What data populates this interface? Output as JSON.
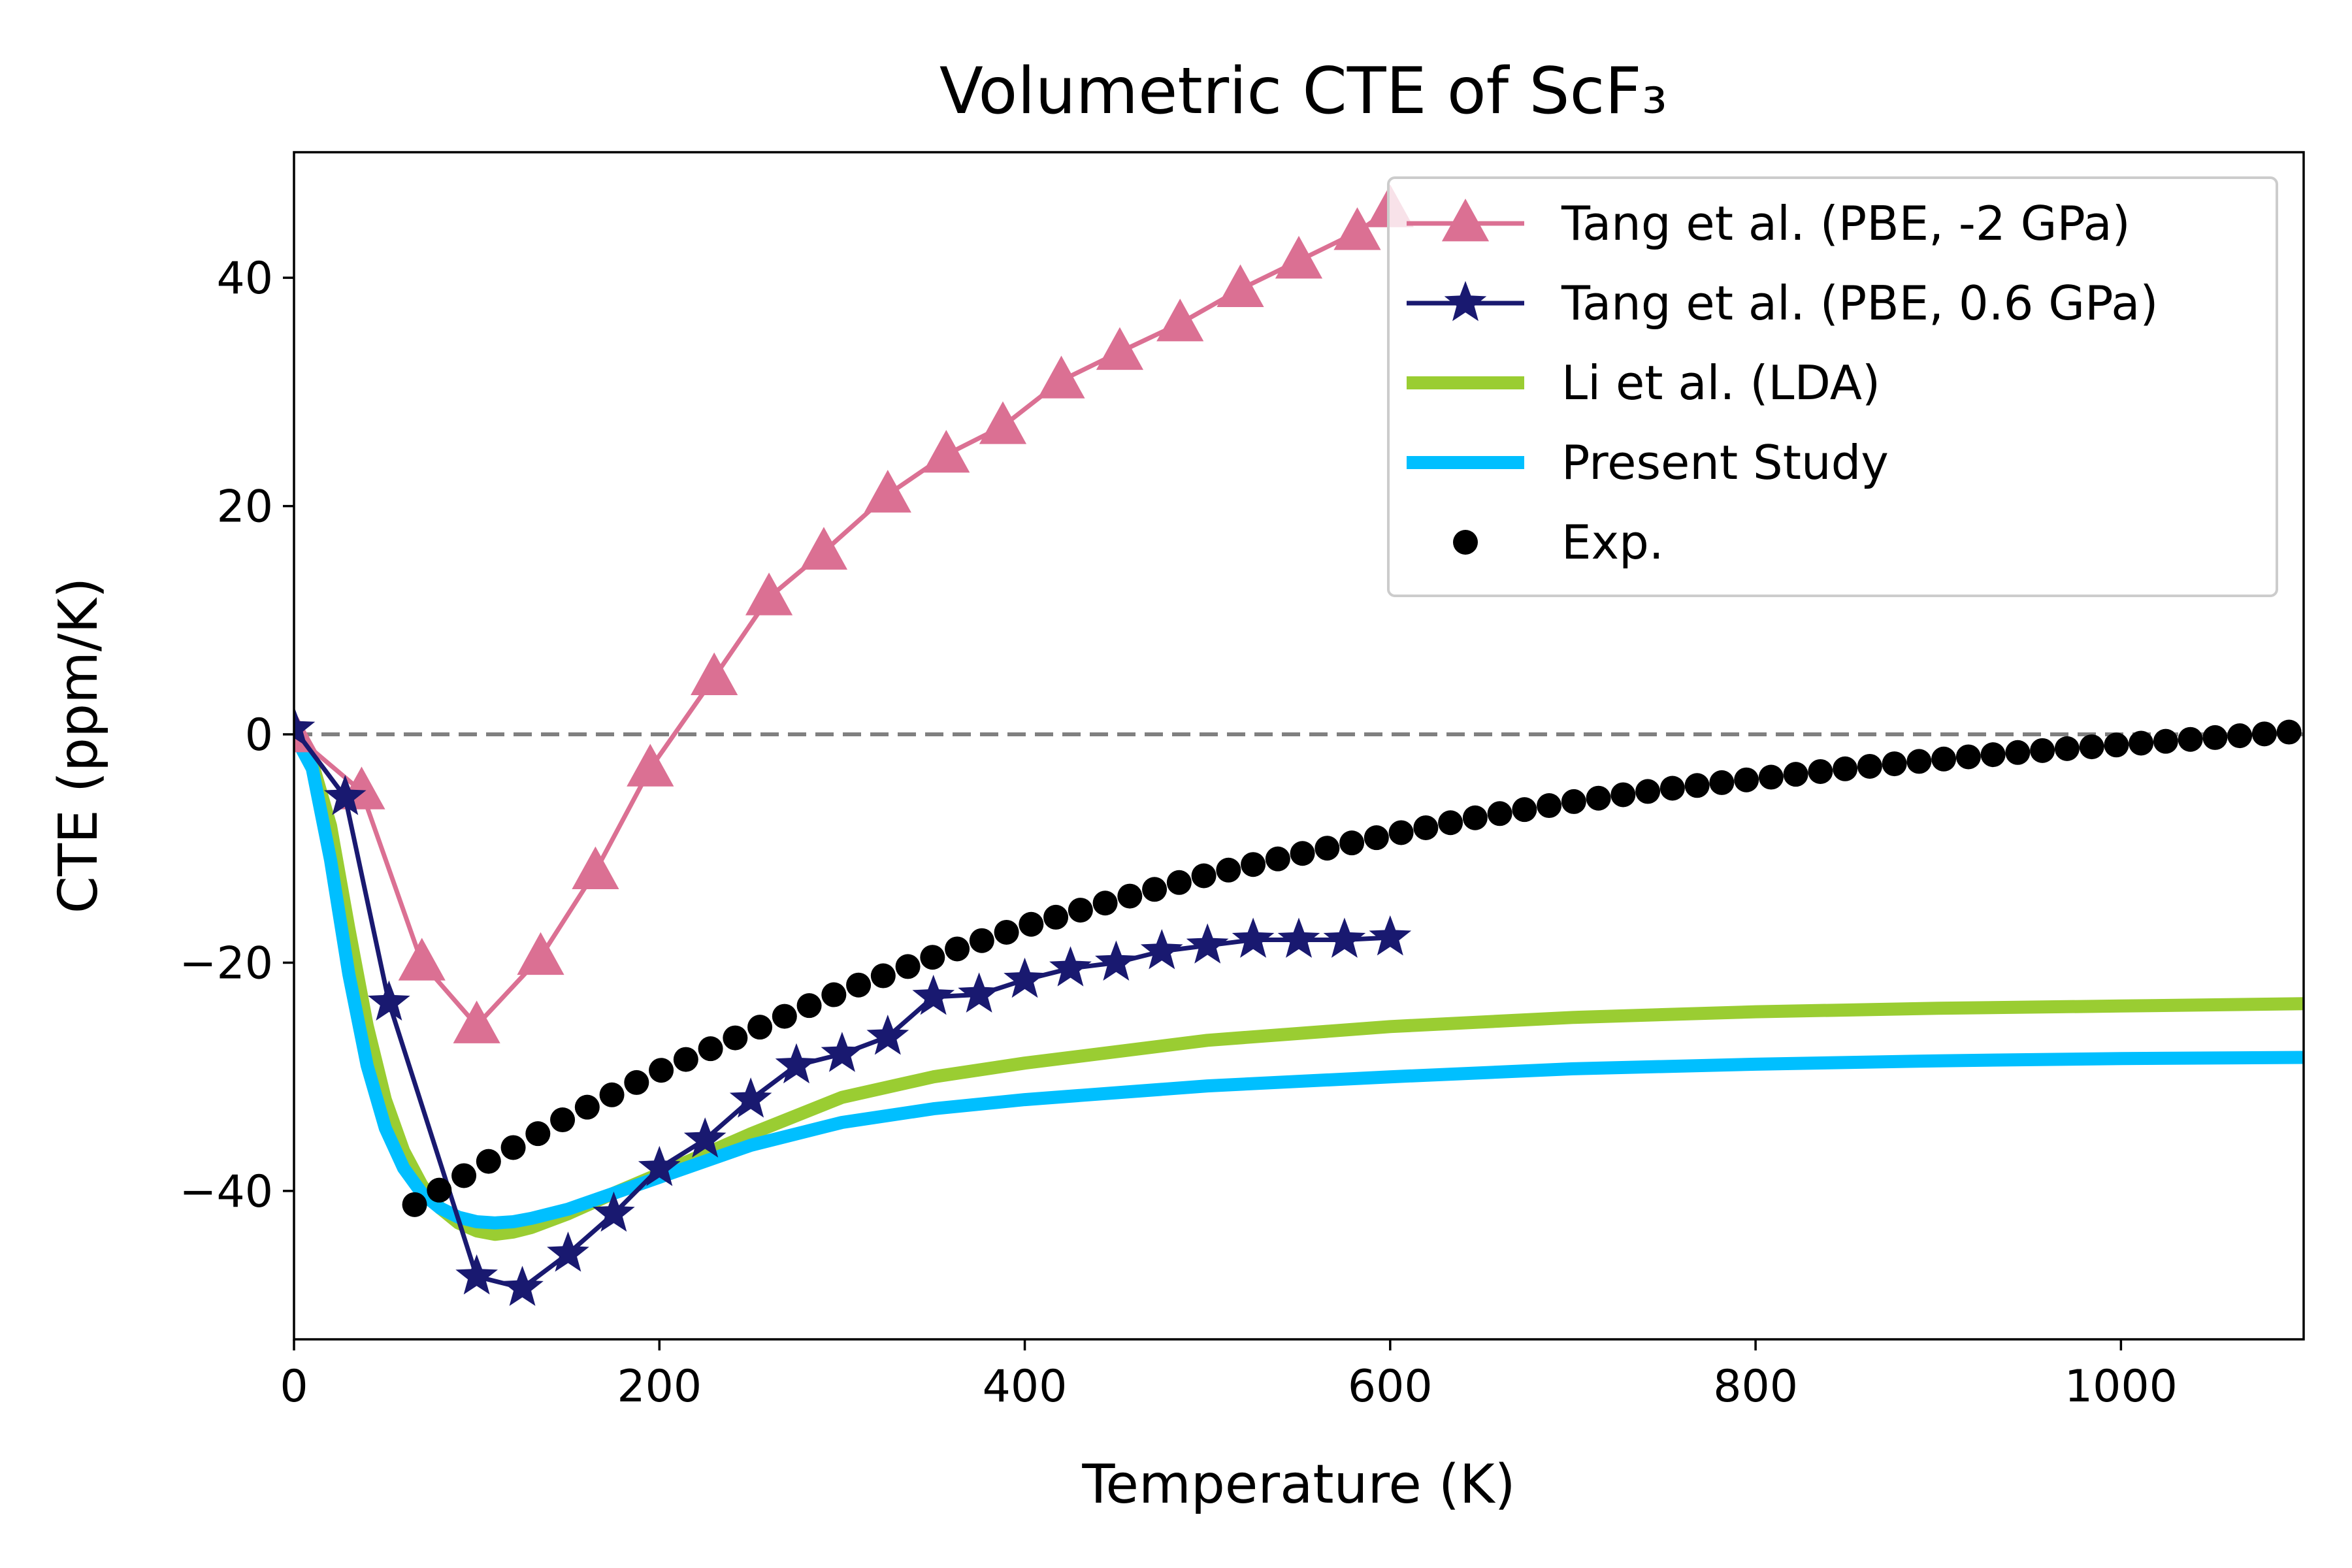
{
  "chart_data": {
    "type": "line",
    "title": "Volumetric CTE of ScF₃",
    "xlabel": "Temperature (K)",
    "ylabel": "CTE (ppm/K)",
    "xlim": [
      0,
      1100
    ],
    "ylim": [
      -53,
      51
    ],
    "xticks": [
      0,
      200,
      400,
      600,
      800,
      1000
    ],
    "yticks": [
      -40,
      -20,
      0,
      20,
      40
    ],
    "xtick_labels": [
      "0",
      "200",
      "400",
      "600",
      "800",
      "1000"
    ],
    "ytick_labels": [
      "−40",
      "−20",
      "0",
      "20",
      "40"
    ],
    "reference_line": {
      "y": 0,
      "style": "dashed",
      "color": "#808080"
    },
    "legend_position": "top-right",
    "series": [
      {
        "name": "Tang et al. (PBE, -2 GPa)",
        "kind": "line-marker",
        "marker": "triangle",
        "color": "#db7093",
        "x": [
          0,
          37,
          70,
          100,
          135,
          165,
          195,
          230,
          260,
          290,
          325,
          357,
          388,
          420,
          452,
          485,
          518,
          550,
          582,
          600
        ],
        "y": [
          0,
          -5,
          -20,
          -25.5,
          -19.5,
          -12,
          -3,
          5,
          12,
          16,
          21,
          24.5,
          27,
          31,
          33.5,
          36,
          39,
          41.5,
          44,
          46
        ]
      },
      {
        "name": "Tang et al. (PBE, 0.6 GPa)",
        "kind": "line-marker",
        "marker": "star",
        "color": "#191970",
        "x": [
          0,
          28,
          52,
          100,
          125,
          150,
          175,
          200,
          225,
          250,
          275,
          300,
          325,
          350,
          375,
          400,
          425,
          450,
          475,
          500,
          525,
          550,
          575,
          600
        ],
        "y": [
          0.5,
          -5.5,
          -23.5,
          -47.5,
          -48.5,
          -45.5,
          -42,
          -38,
          -35.5,
          -32,
          -29,
          -28,
          -26.5,
          -23,
          -22.8,
          -21.5,
          -20.5,
          -20,
          -19,
          -18.5,
          -18,
          -18,
          -18,
          -17.8
        ]
      },
      {
        "name": "Li et al. (LDA)",
        "kind": "line",
        "color": "#9acd32",
        "x": [
          0,
          10,
          20,
          30,
          40,
          50,
          60,
          70,
          80,
          90,
          100,
          110,
          120,
          130,
          150,
          175,
          200,
          250,
          300,
          350,
          400,
          500,
          600,
          700,
          800,
          900,
          1000,
          1100
        ],
        "y": [
          0,
          -2.5,
          -8,
          -17,
          -25.5,
          -32,
          -36.5,
          -39.5,
          -41.5,
          -42.8,
          -43.5,
          -43.8,
          -43.6,
          -43.2,
          -42,
          -40.2,
          -38.5,
          -35,
          -31.8,
          -30,
          -28.8,
          -26.8,
          -25.6,
          -24.8,
          -24.3,
          -24,
          -23.8,
          -23.6
        ]
      },
      {
        "name": "Present Study",
        "kind": "line",
        "color": "#00bfff",
        "x": [
          0,
          10,
          20,
          30,
          40,
          50,
          60,
          70,
          80,
          90,
          100,
          110,
          120,
          130,
          150,
          175,
          200,
          250,
          300,
          350,
          400,
          500,
          600,
          700,
          800,
          900,
          1000,
          1100
        ],
        "y": [
          0,
          -3,
          -11,
          -21,
          -29,
          -34.5,
          -38,
          -40.2,
          -41.5,
          -42.3,
          -42.7,
          -42.8,
          -42.7,
          -42.4,
          -41.6,
          -40.2,
          -38.8,
          -36,
          -34,
          -32.8,
          -32,
          -30.8,
          -30,
          -29.3,
          -28.9,
          -28.6,
          -28.4,
          -28.3
        ]
      },
      {
        "name": "Exp.",
        "kind": "scatter",
        "marker": "circle",
        "color": "#000000",
        "x_start": 66,
        "x_step": 13.5,
        "x_count": 77,
        "note_formula": "",
        "x": [],
        "y": []
      }
    ]
  }
}
